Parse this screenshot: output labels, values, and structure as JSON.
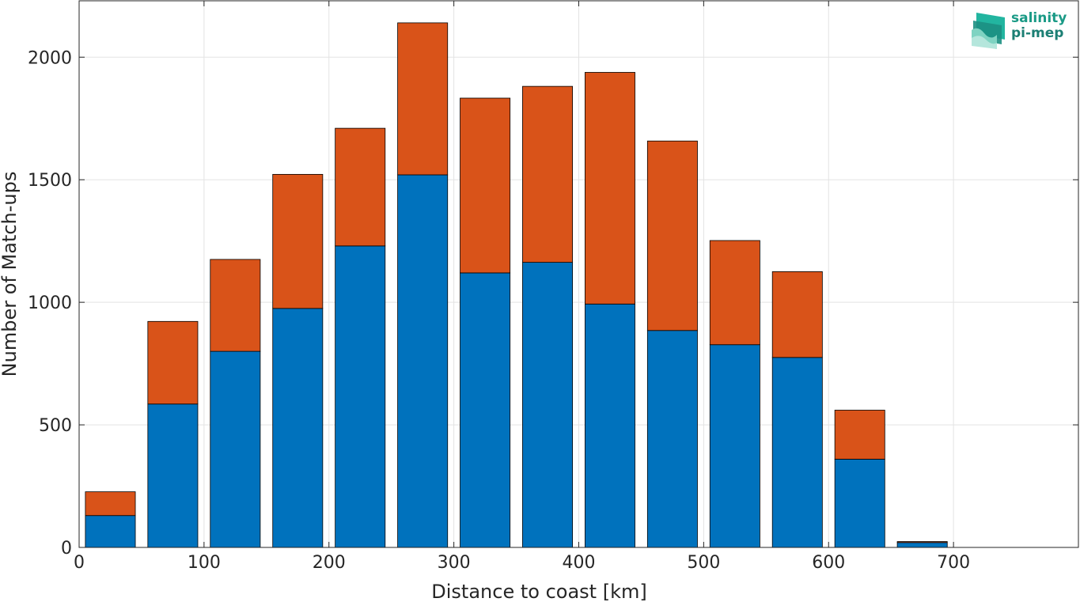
{
  "chart_data": {
    "type": "bar",
    "stacked": true,
    "xlabel": "Distance to coast [km]",
    "ylabel": "Number of Match-ups",
    "xlim": [
      0,
      800
    ],
    "ylim": [
      0,
      2230
    ],
    "grid": true,
    "bin_width": 50,
    "x": [
      25,
      75,
      125,
      175,
      225,
      275,
      325,
      375,
      425,
      475,
      525,
      575,
      625,
      675,
      725
    ],
    "x_ticks": [
      "0",
      "100",
      "200",
      "300",
      "400",
      "500",
      "600",
      "700"
    ],
    "x_tick_values": [
      0,
      100,
      200,
      300,
      400,
      500,
      600,
      700
    ],
    "y_ticks": [
      "0",
      "500",
      "1000",
      "1500",
      "2000"
    ],
    "y_tick_values": [
      0,
      500,
      1000,
      1500,
      2000
    ],
    "series": [
      {
        "color": "#0072bd",
        "values": [
          130,
          585,
          800,
          975,
          1230,
          1520,
          1120,
          1163,
          993,
          885,
          827,
          775,
          360,
          20,
          0
        ]
      },
      {
        "color": "#d95319",
        "values": [
          97,
          337,
          375,
          547,
          480,
          620,
          713,
          718,
          945,
          773,
          425,
          350,
          200,
          4,
          0
        ]
      }
    ]
  },
  "logo": {
    "line1": "salinity",
    "line2": "pi-mep",
    "colors": [
      "#22b5a0",
      "#1c7f74",
      "#7fd3c2"
    ]
  }
}
